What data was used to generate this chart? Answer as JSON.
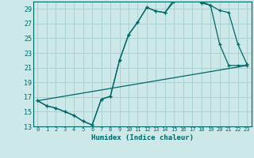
{
  "xlabel": "Humidex (Indice chaleur)",
  "bg_color": "#cce8e8",
  "grid_color": "#aad0d0",
  "line_color": "#006666",
  "xlim": [
    -0.5,
    23.5
  ],
  "ylim": [
    13,
    30
  ],
  "yticks": [
    13,
    15,
    17,
    19,
    21,
    23,
    25,
    27,
    29
  ],
  "xticks": [
    0,
    1,
    2,
    3,
    4,
    5,
    6,
    7,
    8,
    9,
    10,
    11,
    12,
    13,
    14,
    15,
    16,
    17,
    18,
    19,
    20,
    21,
    22,
    23
  ],
  "series1_x": [
    0,
    1,
    2,
    3,
    4,
    5,
    6,
    7,
    8,
    9,
    10,
    11,
    12,
    13,
    14,
    15,
    16,
    17,
    18,
    19,
    20,
    21,
    22,
    23
  ],
  "series1_y": [
    16.5,
    15.8,
    15.5,
    15.0,
    14.5,
    13.7,
    13.2,
    16.7,
    17.1,
    22.0,
    25.5,
    27.2,
    29.2,
    28.7,
    28.5,
    30.0,
    30.3,
    30.5,
    29.8,
    29.5,
    24.2,
    21.3,
    21.3,
    21.3
  ],
  "series2_x": [
    0,
    1,
    2,
    3,
    4,
    5,
    6,
    7,
    8,
    9,
    10,
    11,
    12,
    13,
    14,
    15,
    16,
    17,
    18,
    19,
    20,
    21,
    22,
    23
  ],
  "series2_y": [
    16.5,
    15.8,
    15.5,
    15.0,
    14.5,
    13.7,
    13.2,
    16.7,
    17.1,
    22.0,
    25.5,
    27.2,
    29.2,
    28.7,
    28.5,
    30.3,
    30.5,
    30.7,
    30.0,
    29.5,
    28.8,
    28.5,
    24.2,
    21.5
  ],
  "series3_x": [
    0,
    23
  ],
  "series3_y": [
    16.5,
    21.3
  ]
}
